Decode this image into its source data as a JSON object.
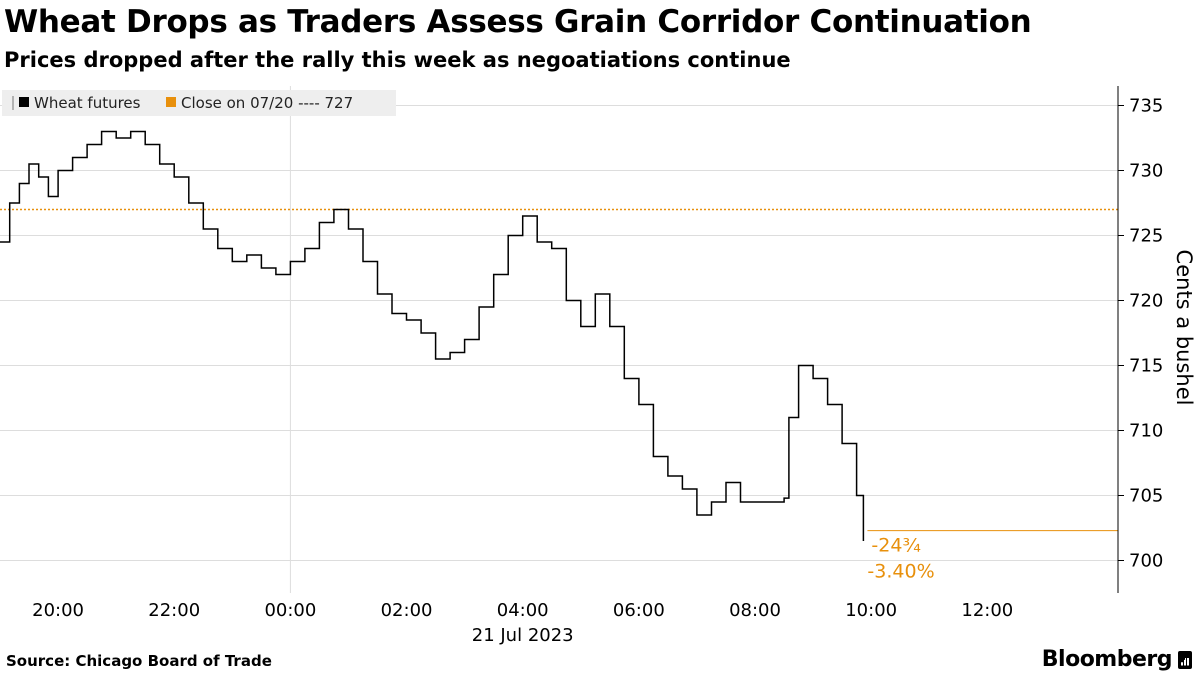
{
  "title": "Wheat Drops as Traders Assess Grain Corridor Continuation",
  "subtitle": "Prices dropped after the rally this week as negoatiations continue",
  "source": "Source: Chicago Board of Trade",
  "brand": "Bloomberg",
  "colors": {
    "series": "#000000",
    "reference": "#e8900c",
    "grid": "#dddddd",
    "legend_bg": "#eeeeee"
  },
  "chart_data": {
    "type": "line",
    "ylabel": "Cents a bushel",
    "date_label": "21 Jul 2023",
    "ylim": [
      697.5,
      736.5
    ],
    "yticks": [
      700,
      705,
      710,
      715,
      720,
      725,
      730,
      735
    ],
    "xlim": [
      "2023-07-20 19:00",
      "2023-07-21 14:15"
    ],
    "xticks": [
      "20:00",
      "22:00",
      "00:00",
      "02:00",
      "04:00",
      "06:00",
      "08:00",
      "10:00",
      "12:00"
    ],
    "legend": [
      {
        "label": "Wheat futures",
        "icon": "line-square-icon"
      },
      {
        "label": "Close on 07/20 ---- 727",
        "icon": "orange-square-icon"
      }
    ],
    "reference_line": {
      "label": "Close on 07/20",
      "value": 727
    },
    "last_value_line": 702.3,
    "annotations": {
      "change": "-24¾",
      "change_pct": "-3.40%"
    },
    "series": [
      {
        "name": "Wheat futures",
        "x": [
          "2023-07-20 19:00",
          "2023-07-20 19:10",
          "2023-07-20 19:20",
          "2023-07-20 19:30",
          "2023-07-20 19:40",
          "2023-07-20 19:50",
          "2023-07-20 20:00",
          "2023-07-20 20:15",
          "2023-07-20 20:30",
          "2023-07-20 20:45",
          "2023-07-20 21:00",
          "2023-07-20 21:15",
          "2023-07-20 21:30",
          "2023-07-20 21:45",
          "2023-07-20 22:00",
          "2023-07-20 22:15",
          "2023-07-20 22:30",
          "2023-07-20 22:45",
          "2023-07-20 23:00",
          "2023-07-20 23:15",
          "2023-07-20 23:30",
          "2023-07-20 23:45",
          "2023-07-21 00:00",
          "2023-07-21 00:15",
          "2023-07-21 00:30",
          "2023-07-21 00:45",
          "2023-07-21 01:00",
          "2023-07-21 01:15",
          "2023-07-21 01:30",
          "2023-07-21 01:45",
          "2023-07-21 02:00",
          "2023-07-21 02:15",
          "2023-07-21 02:30",
          "2023-07-21 02:45",
          "2023-07-21 03:00",
          "2023-07-21 03:15",
          "2023-07-21 03:30",
          "2023-07-21 03:45",
          "2023-07-21 04:00",
          "2023-07-21 04:15",
          "2023-07-21 04:30",
          "2023-07-21 04:45",
          "2023-07-21 05:00",
          "2023-07-21 05:15",
          "2023-07-21 05:30",
          "2023-07-21 05:45",
          "2023-07-21 06:00",
          "2023-07-21 06:15",
          "2023-07-21 06:30",
          "2023-07-21 06:45",
          "2023-07-21 07:00",
          "2023-07-21 07:15",
          "2023-07-21 07:30",
          "2023-07-21 07:45",
          "2023-07-21 08:30",
          "2023-07-21 08:35",
          "2023-07-21 08:45",
          "2023-07-21 09:00",
          "2023-07-21 09:15",
          "2023-07-21 09:30",
          "2023-07-21 09:45",
          "2023-07-21 09:52"
        ],
        "y": [
          724.5,
          727.5,
          729.0,
          730.5,
          729.5,
          728.0,
          730.0,
          731.0,
          732.0,
          733.0,
          732.5,
          733.0,
          732.0,
          730.5,
          729.5,
          727.5,
          725.5,
          724.0,
          723.0,
          723.5,
          722.5,
          722.0,
          723.0,
          724.0,
          726.0,
          727.0,
          725.5,
          723.0,
          720.5,
          719.0,
          718.5,
          717.5,
          715.5,
          716.0,
          717.0,
          719.5,
          722.0,
          725.0,
          726.5,
          724.5,
          724.0,
          720.0,
          718.0,
          720.5,
          718.0,
          714.0,
          712.0,
          708.0,
          706.5,
          705.5,
          703.5,
          704.5,
          706.0,
          704.5,
          704.8,
          711.0,
          715.0,
          714.0,
          712.0,
          709.0,
          705.0,
          701.5
        ]
      }
    ]
  }
}
